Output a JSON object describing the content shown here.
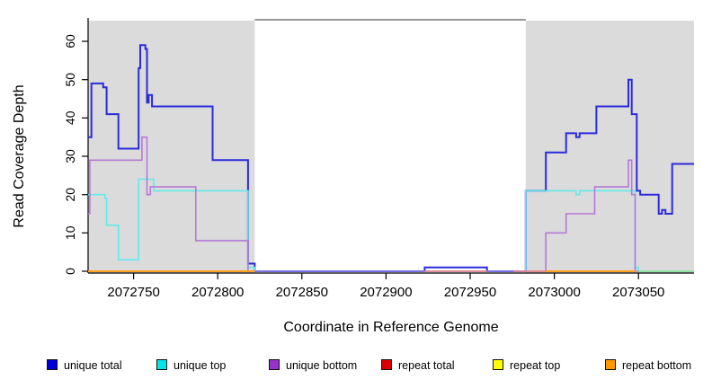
{
  "chart_data": {
    "type": "line",
    "step": true,
    "title": "",
    "xlabel": "Coordinate in Reference Genome",
    "ylabel": "Read Coverage Depth",
    "xlim": [
      2072723,
      2073083
    ],
    "ylim": [
      0,
      60
    ],
    "x_ticks": [
      2072750,
      2072800,
      2072850,
      2072900,
      2072950,
      2073000,
      2073050
    ],
    "y_ticks": [
      0,
      10,
      20,
      30,
      40,
      50,
      60
    ],
    "grid": false,
    "legend_position": "bottom",
    "shaded_regions": [
      {
        "from": 2072723,
        "to": 2072822,
        "color": "#DBDBDB"
      },
      {
        "from": 2072983,
        "to": 2073083,
        "color": "#DBDBDB"
      }
    ],
    "gap_top_border": {
      "from": 2072822,
      "to": 2072983,
      "color": "#777777"
    },
    "series": [
      {
        "name": "unique total",
        "color": "#2B2BDC",
        "width": 2,
        "points": [
          [
            2072723,
            35
          ],
          [
            2072725,
            49
          ],
          [
            2072732,
            48
          ],
          [
            2072734,
            41
          ],
          [
            2072741,
            32
          ],
          [
            2072753,
            53
          ],
          [
            2072754,
            59
          ],
          [
            2072757,
            58
          ],
          [
            2072758,
            44
          ],
          [
            2072759,
            46
          ],
          [
            2072761,
            43
          ],
          [
            2072797,
            29
          ],
          [
            2072818,
            2
          ],
          [
            2072822,
            0
          ],
          [
            2072923,
            1
          ],
          [
            2072960,
            0
          ],
          [
            2072983,
            21
          ],
          [
            2072995,
            31
          ],
          [
            2073007,
            36
          ],
          [
            2073013,
            35
          ],
          [
            2073015,
            36
          ],
          [
            2073025,
            43
          ],
          [
            2073044,
            50
          ],
          [
            2073046,
            41
          ],
          [
            2073049,
            21
          ],
          [
            2073051,
            20
          ],
          [
            2073062,
            15
          ],
          [
            2073064,
            16
          ],
          [
            2073066,
            15
          ],
          [
            2073070,
            28
          ],
          [
            2073083,
            28
          ]
        ]
      },
      {
        "name": "unique top",
        "color": "#62EAEA",
        "width": 1.6,
        "points": [
          [
            2072723,
            20
          ],
          [
            2072733,
            19
          ],
          [
            2072734,
            12
          ],
          [
            2072741,
            3
          ],
          [
            2072753,
            24
          ],
          [
            2072762,
            21
          ],
          [
            2072818,
            1
          ],
          [
            2072822,
            0
          ],
          [
            2072983,
            21
          ],
          [
            2073013,
            20
          ],
          [
            2073015,
            21
          ],
          [
            2073048,
            1
          ],
          [
            2073050,
            0
          ],
          [
            2073083,
            0
          ]
        ]
      },
      {
        "name": "unique bottom",
        "color": "#B678D8",
        "width": 1.6,
        "points": [
          [
            2072723,
            15
          ],
          [
            2072724,
            29
          ],
          [
            2072755,
            35
          ],
          [
            2072758,
            20
          ],
          [
            2072760,
            22
          ],
          [
            2072787,
            8
          ],
          [
            2072818,
            0
          ],
          [
            2072995,
            10
          ],
          [
            2073007,
            15
          ],
          [
            2073024,
            22
          ],
          [
            2073044,
            29
          ],
          [
            2073046,
            20
          ],
          [
            2073048,
            0
          ],
          [
            2073050,
            0
          ]
        ]
      }
    ],
    "baseline_segments": [
      {
        "name": "unique total + unique bottom overlap",
        "color": "#7C6CEA",
        "width": 1.6,
        "from": 2072822,
        "to": 2072923,
        "value": 0
      },
      {
        "name": "repeat total",
        "color": "#EE8181",
        "width": 1.6,
        "from": 2072923,
        "to": 2072960,
        "value": 0
      },
      {
        "name": "unique total + unique bottom overlap",
        "color": "#7C6CEA",
        "width": 1.6,
        "from": 2072960,
        "to": 2072976,
        "value": 0
      },
      {
        "name": "repeat total",
        "color": "#EE8181",
        "width": 1.6,
        "from": 2072976,
        "to": 2072995,
        "value": 0
      },
      {
        "name": "repeat bottom",
        "color": "#FFA01E",
        "width": 2,
        "from": 2072723,
        "to": 2072822,
        "value": 0
      },
      {
        "name": "repeat bottom",
        "color": "#FFA01E",
        "width": 2,
        "from": 2072995,
        "to": 2073048,
        "value": 0
      },
      {
        "name": "repeat top + unique top overlap",
        "color": "#8EE08E",
        "width": 1.6,
        "from": 2073050,
        "to": 2073083,
        "value": 0
      }
    ],
    "legend": [
      {
        "label": "unique total",
        "color": "#0000DD"
      },
      {
        "label": "unique top",
        "color": "#00E5E5"
      },
      {
        "label": "unique bottom",
        "color": "#9932CC"
      },
      {
        "label": "repeat total",
        "color": "#DD0000"
      },
      {
        "label": "repeat top",
        "color": "#FFFF00"
      },
      {
        "label": "repeat bottom",
        "color": "#FF9900"
      }
    ]
  }
}
